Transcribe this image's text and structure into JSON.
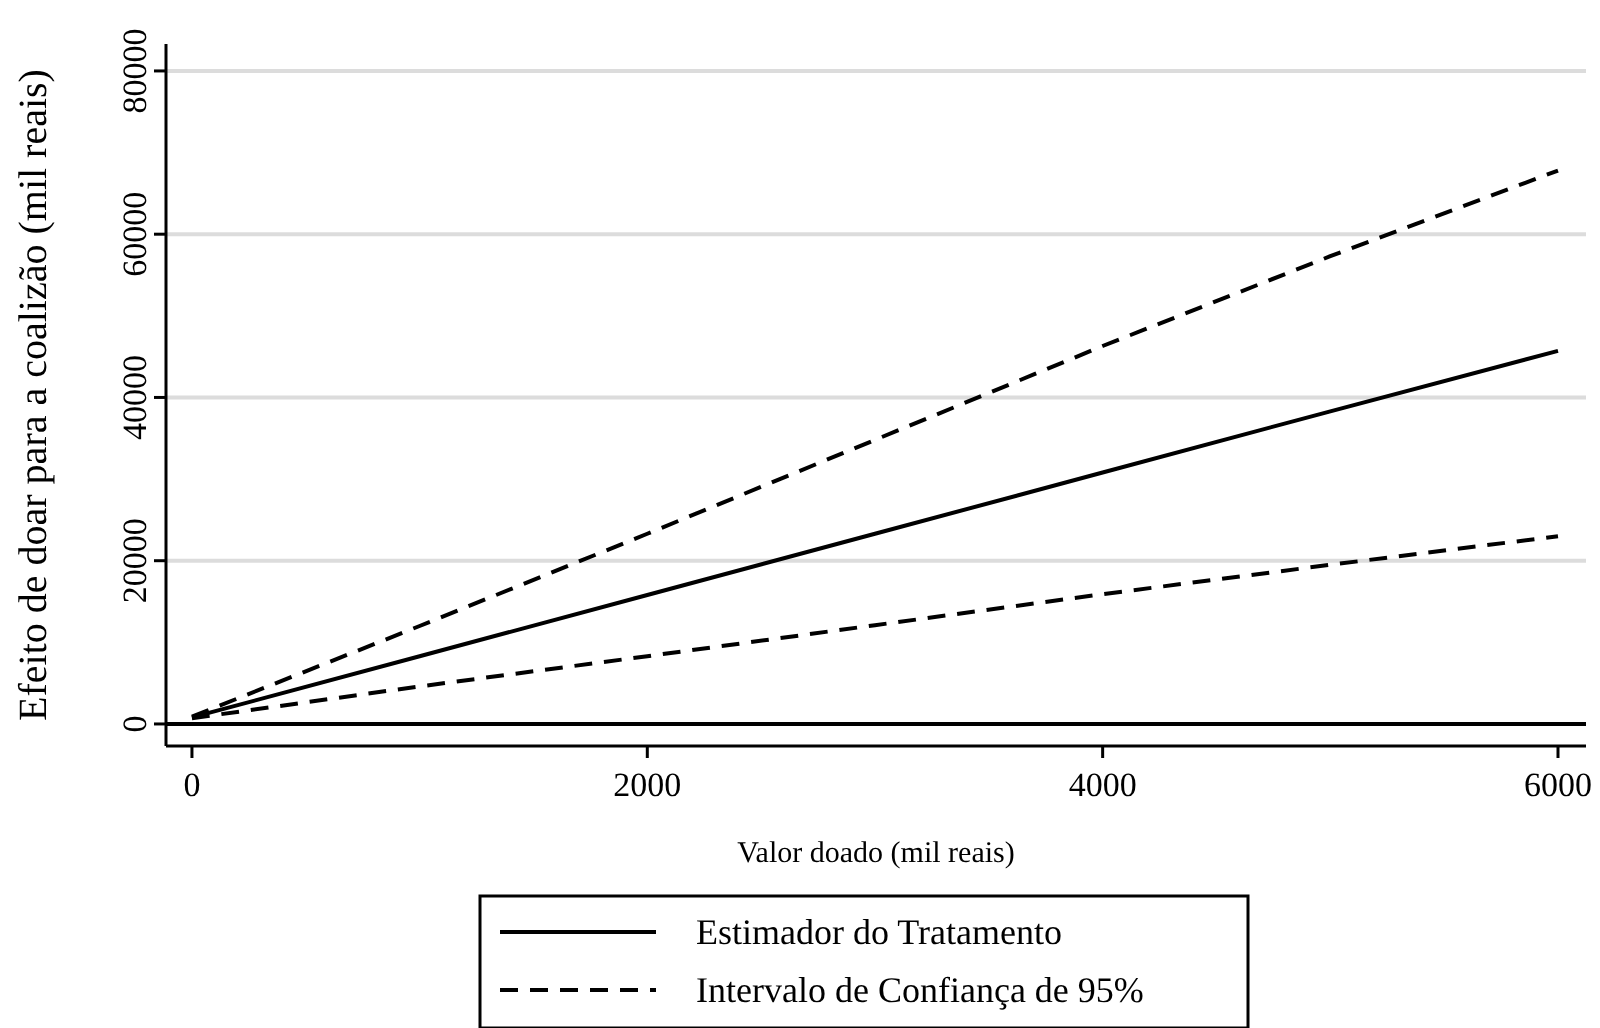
{
  "chart_data": {
    "type": "line",
    "xlabel": "Valor doado (mil reais)",
    "ylabel": "Efeito de doar para a coalizão (mil reais)",
    "x": [
      0,
      1000,
      2000,
      3000,
      4000,
      5000,
      6000
    ],
    "xlim": [
      -114,
      6123
    ],
    "ylim": [
      -2700,
      83300
    ],
    "xticks": [
      0,
      2000,
      4000,
      6000
    ],
    "yticks": [
      0,
      20000,
      40000,
      60000,
      80000
    ],
    "grid": "y",
    "legend": "bottom",
    "marker": "none",
    "series": [
      {
        "name": "Estimador do Tratamento",
        "color": "#000000",
        "line_style": "solid",
        "values": [
          800,
          8300,
          15800,
          23300,
          30800,
          38300,
          45700
        ]
      },
      {
        "name": "Intervalo de Confiança de 95%",
        "color": "#000000",
        "line_style": "dashed",
        "values": [
          900,
          12000,
          23300,
          34800,
          46300,
          57300,
          67800
        ]
      },
      {
        "color": "#000000",
        "line_style": "dashed",
        "values": [
          700,
          4600,
          8300,
          12100,
          15900,
          19500,
          23000
        ]
      }
    ],
    "ref_lines": [
      {
        "axis": "y",
        "value": 0,
        "color": "#000000",
        "line_style": "solid"
      }
    ]
  }
}
